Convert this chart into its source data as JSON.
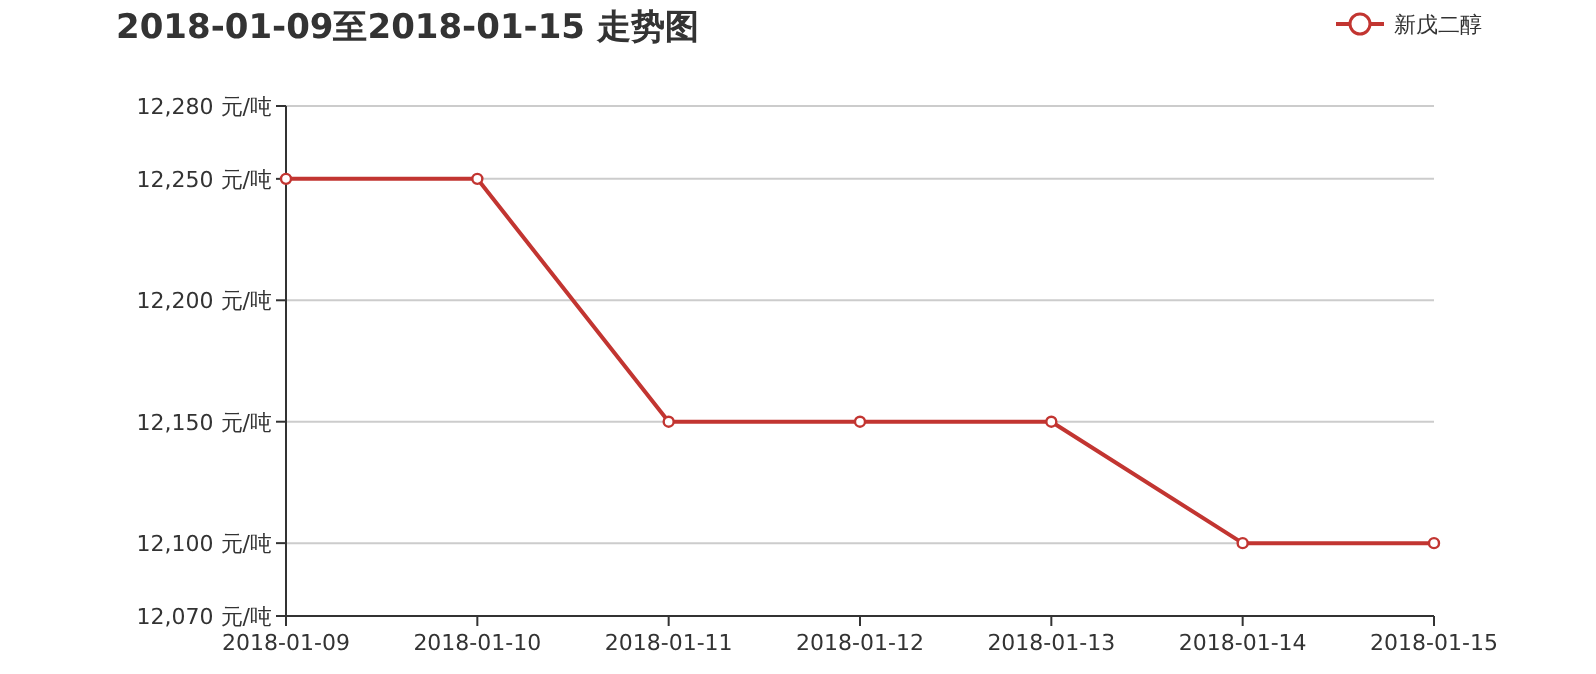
{
  "chart_data": {
    "type": "line",
    "title": "2018-01-09至2018-01-15 走势图",
    "categories": [
      "2018-01-09",
      "2018-01-10",
      "2018-01-11",
      "2018-01-12",
      "2018-01-13",
      "2018-01-14",
      "2018-01-15"
    ],
    "series": [
      {
        "name": "新戊二醇",
        "color": "#c23531",
        "values": [
          12250,
          12250,
          12150,
          12150,
          12150,
          12100,
          12100
        ]
      }
    ],
    "ylim": [
      12070,
      12280
    ],
    "yticks": [
      {
        "value": 12070,
        "label": "12,070 元/吨"
      },
      {
        "value": 12100,
        "label": "12,100 元/吨"
      },
      {
        "value": 12150,
        "label": "12,150 元/吨"
      },
      {
        "value": 12200,
        "label": "12,200 元/吨"
      },
      {
        "value": 12250,
        "label": "12,250 元/吨"
      },
      {
        "value": 12280,
        "label": "12,280 元/吨"
      }
    ],
    "grid": "y",
    "legend": "top right",
    "marker": "circle",
    "line_style": "solid"
  }
}
